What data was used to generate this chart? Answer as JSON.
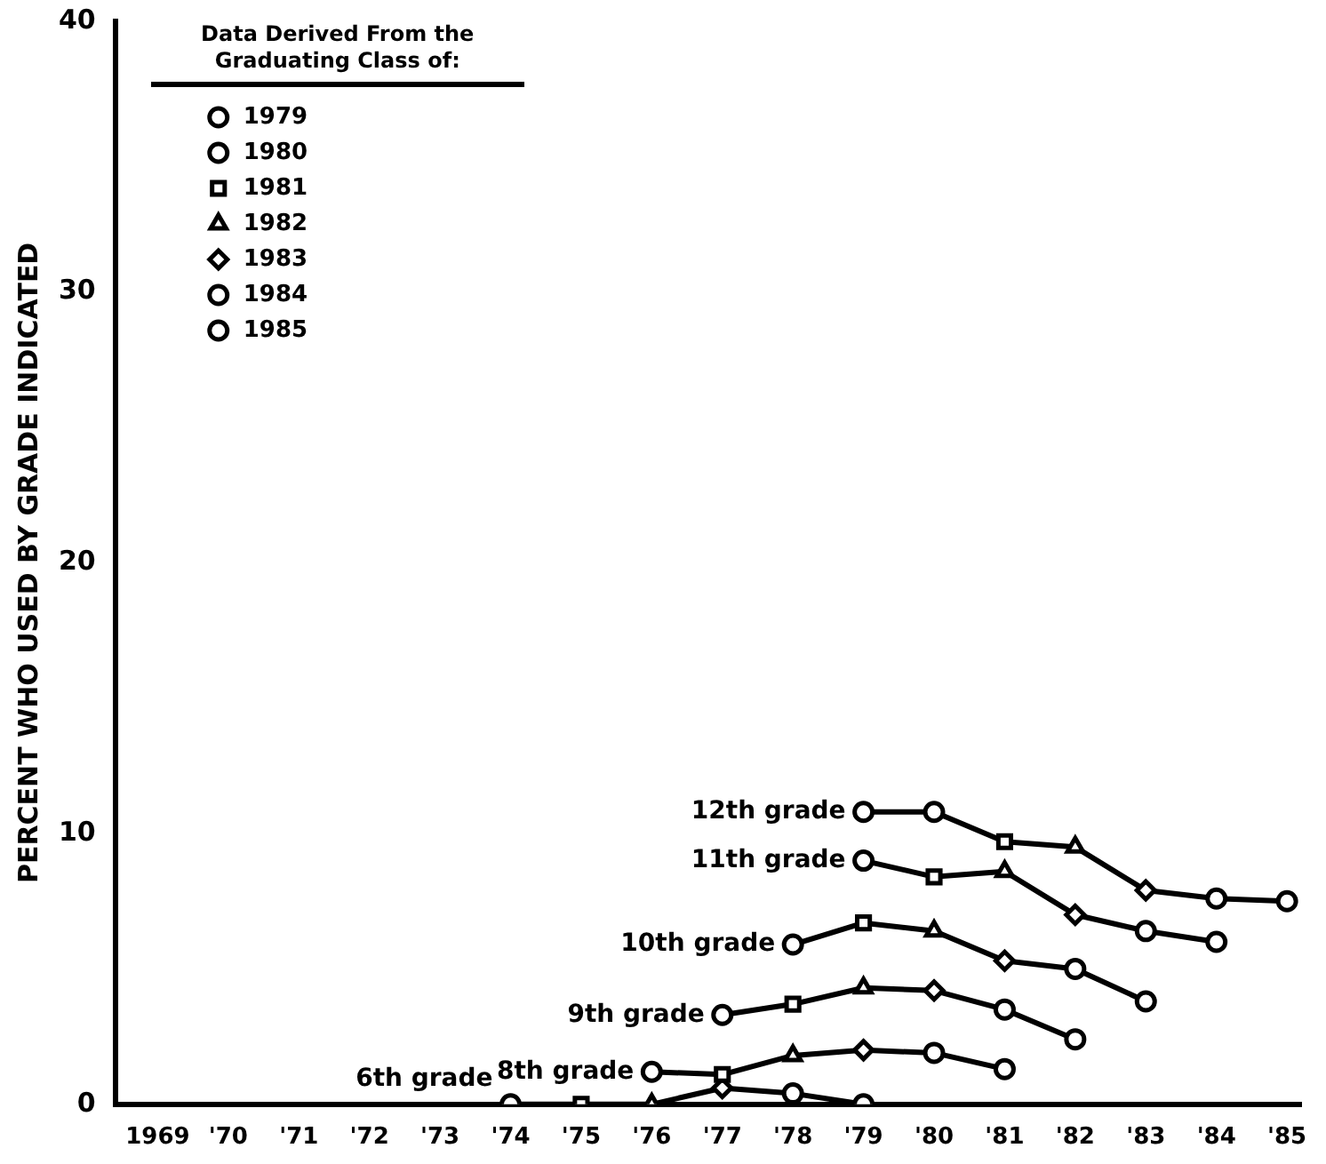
{
  "chart_data": {
    "type": "line",
    "ylabel": "PERCENT WHO USED BY GRADE INDICATED",
    "legend_title": "Data Derived From the Graduating Class of:",
    "legend": "top left",
    "grid": false,
    "line_style": "solid",
    "xlim": [
      1968.4,
      1985.2
    ],
    "xticks": [
      {
        "value": 1969,
        "label": "1969"
      },
      {
        "value": 1970,
        "label": "'70"
      },
      {
        "value": 1971,
        "label": "'71"
      },
      {
        "value": 1972,
        "label": "'72"
      },
      {
        "value": 1973,
        "label": "'73"
      },
      {
        "value": 1974,
        "label": "'74"
      },
      {
        "value": 1975,
        "label": "'75"
      },
      {
        "value": 1976,
        "label": "'76"
      },
      {
        "value": 1977,
        "label": "'77"
      },
      {
        "value": 1978,
        "label": "'78"
      },
      {
        "value": 1979,
        "label": "'79"
      },
      {
        "value": 1980,
        "label": "'80"
      },
      {
        "value": 1981,
        "label": "'81"
      },
      {
        "value": 1982,
        "label": "'82"
      },
      {
        "value": 1983,
        "label": "'83"
      },
      {
        "value": 1984,
        "label": "'84"
      },
      {
        "value": 1985,
        "label": "'85"
      }
    ],
    "ylim": [
      0,
      40
    ],
    "yticks": [
      0,
      10,
      20,
      30,
      40
    ],
    "series": [
      {
        "name": "12th grade",
        "type": "line",
        "marker": "none",
        "color": "#000000",
        "x": [
          1979,
          1980,
          1981,
          1982,
          1983,
          1984,
          1985
        ],
        "values": [
          10.8,
          10.8,
          9.7,
          9.5,
          7.9,
          7.6,
          7.5
        ]
      },
      {
        "name": "11th grade",
        "type": "line",
        "marker": "none",
        "color": "#000000",
        "x": [
          1979,
          1980,
          1981,
          1982,
          1983,
          1984
        ],
        "values": [
          9.0,
          8.4,
          8.6,
          7.0,
          6.4,
          6.0
        ]
      },
      {
        "name": "10th grade",
        "type": "line",
        "marker": "none",
        "color": "#000000",
        "x": [
          1978,
          1979,
          1980,
          1981,
          1982,
          1983
        ],
        "values": [
          5.9,
          6.7,
          6.4,
          5.3,
          5.0,
          3.8
        ]
      },
      {
        "name": "9th grade",
        "type": "line",
        "marker": "none",
        "color": "#000000",
        "x": [
          1977,
          1978,
          1979,
          1980,
          1981,
          1982
        ],
        "values": [
          3.3,
          3.7,
          4.3,
          4.2,
          3.5,
          2.4
        ]
      },
      {
        "name": "8th grade",
        "type": "line",
        "marker": "none",
        "color": "#000000",
        "x": [
          1976,
          1977,
          1978,
          1979,
          1980,
          1981
        ],
        "values": [
          1.2,
          1.1,
          1.8,
          2.0,
          1.9,
          1.3
        ]
      },
      {
        "name": "6th grade",
        "type": "line",
        "marker": "none",
        "color": "#000000",
        "x": [
          1974,
          1975,
          1976,
          1977,
          1978,
          1979
        ],
        "values": [
          0,
          0,
          0,
          0.6,
          0.4,
          0
        ]
      },
      {
        "name": "1979",
        "type": "scatter",
        "marker": "circle",
        "color": "#000000",
        "x": [
          1979
        ],
        "values": [
          10.8
        ]
      },
      {
        "name": "1980",
        "type": "scatter",
        "marker": "circle",
        "color": "#000000",
        "x": [
          1974,
          1976,
          1977,
          1978,
          1979,
          1980
        ],
        "values": [
          0,
          1.2,
          3.3,
          5.9,
          9.0,
          10.8
        ]
      },
      {
        "name": "1981",
        "type": "scatter",
        "marker": "square",
        "color": "#000000",
        "x": [
          1975,
          1977,
          1978,
          1979,
          1980,
          1981
        ],
        "values": [
          0,
          1.1,
          3.7,
          6.7,
          8.4,
          9.7
        ]
      },
      {
        "name": "1982",
        "type": "scatter",
        "marker": "triangle",
        "color": "#000000",
        "x": [
          1976,
          1978,
          1979,
          1980,
          1981,
          1982
        ],
        "values": [
          0,
          1.8,
          4.3,
          6.4,
          8.6,
          9.5
        ]
      },
      {
        "name": "1983",
        "type": "scatter",
        "marker": "diamond",
        "color": "#000000",
        "x": [
          1977,
          1979,
          1980,
          1981,
          1982,
          1983
        ],
        "values": [
          0.6,
          2.0,
          4.2,
          5.3,
          7.0,
          7.9
        ]
      },
      {
        "name": "1984",
        "type": "scatter",
        "marker": "circle",
        "color": "#000000",
        "x": [
          1978,
          1980,
          1981,
          1982,
          1983,
          1984
        ],
        "values": [
          0.4,
          1.9,
          3.5,
          5.0,
          6.4,
          7.6
        ]
      },
      {
        "name": "1985",
        "type": "scatter",
        "marker": "circle",
        "color": "#000000",
        "x": [
          1979,
          1981,
          1982,
          1983,
          1984,
          1985
        ],
        "values": [
          0,
          1.3,
          2.4,
          3.8,
          6.0,
          7.5
        ]
      }
    ]
  }
}
